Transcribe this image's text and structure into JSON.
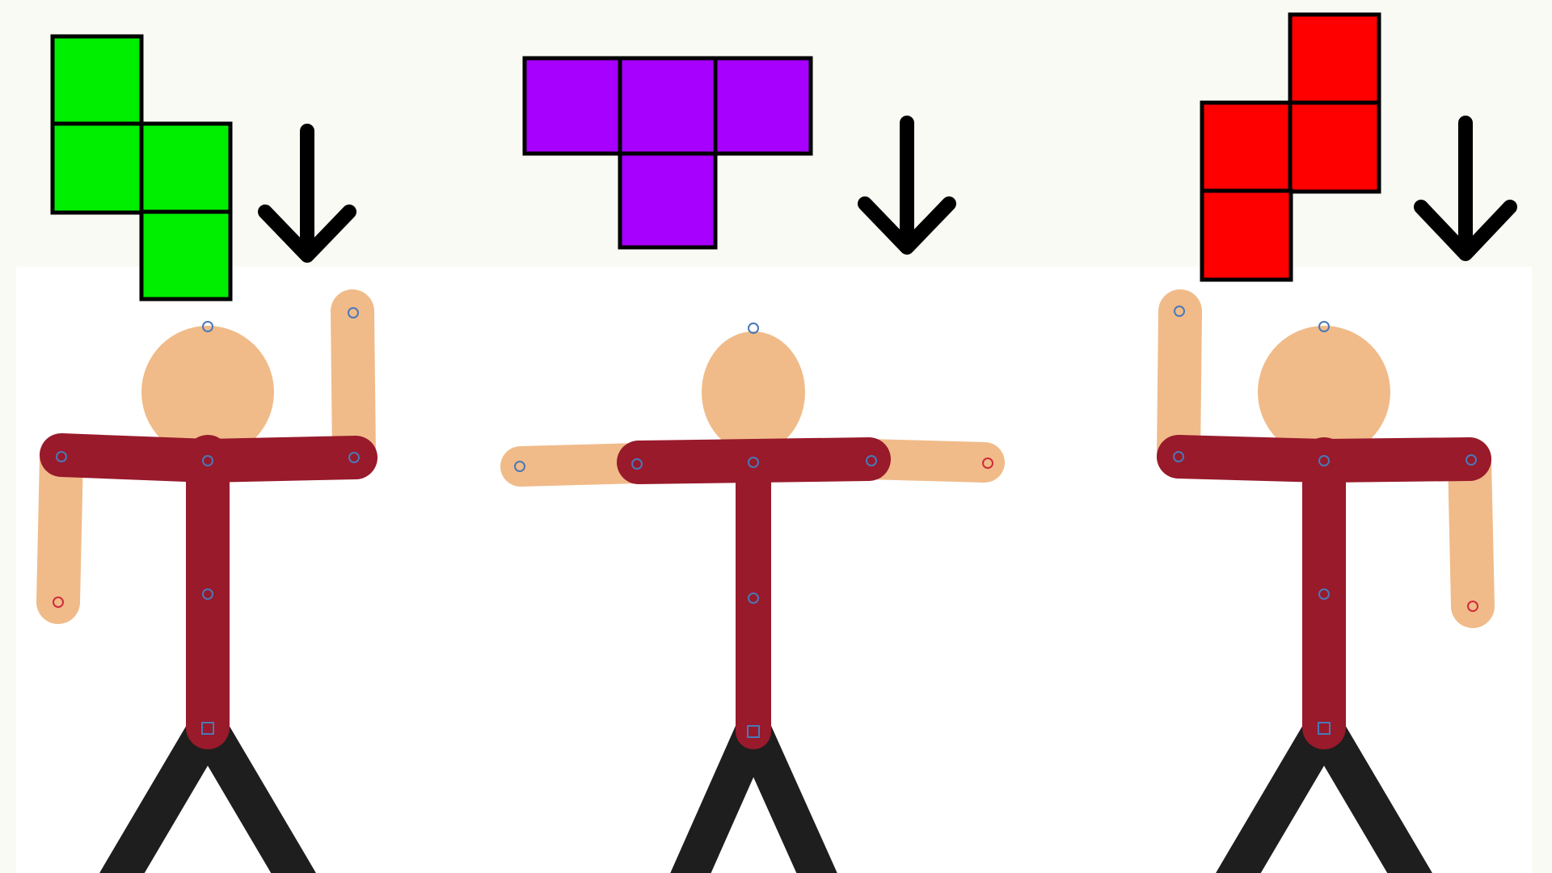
{
  "colors": {
    "background": "#ffffff",
    "background_tint": "#fafaf4",
    "outline": "#000000",
    "skin": "#f0bb89",
    "shirt": "#981a2b",
    "pants": "#1e1e1e",
    "joint_blue": "#4a78b8",
    "joint_red": "#d12a3a"
  },
  "tetrominoes": [
    {
      "name": "S",
      "color": "#00ee00",
      "cells": [
        [
          0,
          0
        ],
        [
          0,
          1
        ],
        [
          1,
          1
        ],
        [
          1,
          2
        ]
      ]
    },
    {
      "name": "T",
      "color": "#a800ff",
      "cells": [
        [
          0,
          0
        ],
        [
          1,
          0
        ],
        [
          2,
          0
        ],
        [
          1,
          1
        ]
      ]
    },
    {
      "name": "Z",
      "color": "#ff0000",
      "cells": [
        [
          1,
          0
        ],
        [
          0,
          1
        ],
        [
          1,
          1
        ],
        [
          0,
          2
        ]
      ]
    }
  ],
  "figures": [
    {
      "pose": "left-arm-down-right-arm-up",
      "matches": "S"
    },
    {
      "pose": "arms-out",
      "matches": "T"
    },
    {
      "pose": "left-arm-up-right-arm-down",
      "matches": "Z"
    }
  ],
  "arrows": [
    {
      "icon": "arrow-down-icon",
      "direction": "down"
    },
    {
      "icon": "arrow-down-icon",
      "direction": "down"
    },
    {
      "icon": "arrow-down-icon",
      "direction": "down"
    }
  ]
}
